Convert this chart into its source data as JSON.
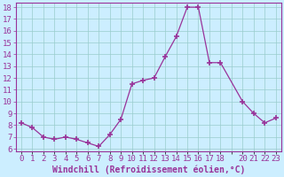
{
  "x": [
    0,
    1,
    2,
    3,
    4,
    5,
    6,
    7,
    8,
    9,
    10,
    11,
    12,
    13,
    14,
    15,
    16,
    17,
    18,
    20,
    21,
    22,
    23
  ],
  "y": [
    8.2,
    7.8,
    7.0,
    6.8,
    7.0,
    6.8,
    6.5,
    6.2,
    7.2,
    8.5,
    11.5,
    11.8,
    12.0,
    13.8,
    15.5,
    18.0,
    18.0,
    13.3,
    13.3,
    10.0,
    9.0,
    8.2,
    8.6
  ],
  "line_color": "#993399",
  "marker": "+",
  "marker_size": 4,
  "marker_lw": 1.2,
  "bg_color": "#cceeff",
  "grid_color": "#99cccc",
  "xlabel": "Windchill (Refroidissement éolien,°C)",
  "xlabel_color": "#993399",
  "xlabel_fontsize": 7.0,
  "tick_color": "#993399",
  "tick_fontsize": 6.5,
  "ylim": [
    5.8,
    18.4
  ],
  "ytick_min": 6,
  "ytick_max": 18,
  "xlim_min": -0.5,
  "xlim_max": 23.5,
  "xticks": [
    0,
    1,
    2,
    3,
    4,
    5,
    6,
    7,
    8,
    9,
    10,
    11,
    12,
    13,
    14,
    15,
    16,
    17,
    18,
    20,
    21,
    22,
    23
  ],
  "spine_color": "#993399",
  "linewidth": 0.9
}
